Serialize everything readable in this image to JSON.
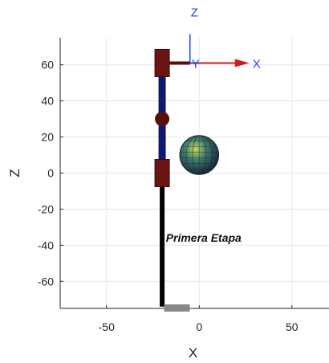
{
  "chart_data": {
    "type": "3d-robot-plot",
    "view": "x-z side view",
    "xlabel": "X",
    "ylabel": "Z",
    "xlim": [
      -75,
      70
    ],
    "ylim": [
      -75,
      75
    ],
    "xticks": [
      -50,
      0,
      50
    ],
    "yticks": [
      60,
      40,
      20,
      0,
      -20,
      -40,
      -60
    ],
    "grid": true,
    "annotation": {
      "text": "Primera Etapa",
      "x": -18,
      "z": -38
    },
    "coordinate_frame": {
      "origin": {
        "x": -5,
        "z": 61
      },
      "axis_labels": {
        "x": "X",
        "y": "Y",
        "z": "Z"
      }
    },
    "links": [
      {
        "name": "base-post",
        "from": {
          "x": -20,
          "z": -74
        },
        "to": {
          "x": -20,
          "z": -7
        },
        "color": "#000000"
      },
      {
        "name": "arm-link",
        "from": {
          "x": -20,
          "z": -7
        },
        "to": {
          "x": -20,
          "z": 61
        },
        "color": "#0d1a6e"
      },
      {
        "name": "end-effector-link",
        "from": {
          "x": -20,
          "z": 61
        },
        "to": {
          "x": -5,
          "z": 61
        },
        "color": "#5a0d0d"
      }
    ],
    "joints": [
      {
        "name": "base-joint",
        "x": -20,
        "z": 0,
        "shape": "block",
        "color": "#6b1414"
      },
      {
        "name": "elbow-joint",
        "x": -20,
        "z": 30,
        "shape": "ball",
        "color": "#5a0d0d"
      },
      {
        "name": "top-joint",
        "x": -20,
        "z": 61,
        "shape": "block",
        "color": "#6b1414"
      }
    ],
    "base_plate": {
      "x": -12,
      "z": -75,
      "color": "#888888"
    },
    "target_sphere": {
      "x": 0,
      "z": 10,
      "radius": 10
    },
    "colors": {
      "grid": "#e6e6e6",
      "axis": "#262626",
      "frame_x": "#c81e1e",
      "frame_z": "#1f3fff"
    }
  }
}
